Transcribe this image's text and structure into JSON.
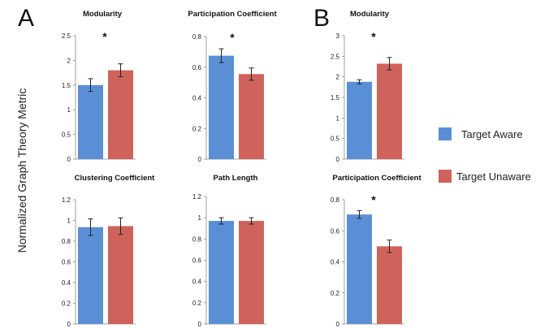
{
  "figure": {
    "ylabel": "Normalized Graph Theory Metric",
    "panel_letters": [
      "A",
      "B"
    ]
  },
  "legend": {
    "items": [
      {
        "label": "Target Aware",
        "color": "#5a8fd6"
      },
      {
        "label": "Target Unaware",
        "color": "#d0625c"
      }
    ]
  },
  "colors": {
    "aware": "#5a8fd6",
    "unaware": "#d0625c"
  },
  "chart_data": [
    {
      "type": "bar",
      "title": "Modularity",
      "ylim": [
        0,
        2.5
      ],
      "ticks": [
        "0",
        "0.5",
        "1",
        "1.5",
        "2",
        "2.5"
      ],
      "categories": [
        "Target Aware",
        "Target Unaware"
      ],
      "values": [
        1.5,
        1.8
      ],
      "errors": [
        0.13,
        0.13
      ],
      "significance": "*"
    },
    {
      "type": "bar",
      "title": "Participation Coefficient",
      "ylim": [
        0,
        0.8
      ],
      "ticks": [
        "0",
        "0.2",
        "0.4",
        "0.6",
        "0.8"
      ],
      "categories": [
        "Target Aware",
        "Target Unaware"
      ],
      "values": [
        0.675,
        0.555
      ],
      "errors": [
        0.045,
        0.04
      ],
      "significance": "*"
    },
    {
      "type": "bar",
      "title": "Clustering Coefficient",
      "ylim": [
        0,
        1.2
      ],
      "ticks": [
        "0",
        "0.2",
        "0.4",
        "0.6",
        "0.8",
        "1",
        "1.2"
      ],
      "categories": [
        "Target Aware",
        "Target Unaware"
      ],
      "values": [
        0.935,
        0.945
      ],
      "errors": [
        0.08,
        0.08
      ],
      "significance": ""
    },
    {
      "type": "bar",
      "title": "Path Length",
      "ylim": [
        0,
        1.2
      ],
      "ticks": [
        "0",
        "0.2",
        "0.4",
        "0.6",
        "0.8",
        "1",
        "1.2"
      ],
      "categories": [
        "Target Aware",
        "Target Unaware"
      ],
      "values": [
        0.97,
        0.97
      ],
      "errors": [
        0.03,
        0.03
      ],
      "significance": ""
    },
    {
      "type": "bar",
      "title": "Modularity",
      "ylim": [
        0,
        3
      ],
      "ticks": [
        "0",
        "0.5",
        "1",
        "1.5",
        "2",
        "2.5",
        "3"
      ],
      "categories": [
        "Target Aware",
        "Target Unaware"
      ],
      "values": [
        1.88,
        2.32
      ],
      "errors": [
        0.05,
        0.15
      ],
      "significance": "*"
    },
    {
      "type": "bar",
      "title": "Participation Coefficient",
      "ylim": [
        0,
        0.8
      ],
      "ticks": [
        "0",
        "0.2",
        "0.4",
        "0.6",
        "0.8"
      ],
      "categories": [
        "Target Aware",
        "Target Unaware"
      ],
      "values": [
        0.705,
        0.5
      ],
      "errors": [
        0.025,
        0.04
      ],
      "significance": "*"
    }
  ]
}
